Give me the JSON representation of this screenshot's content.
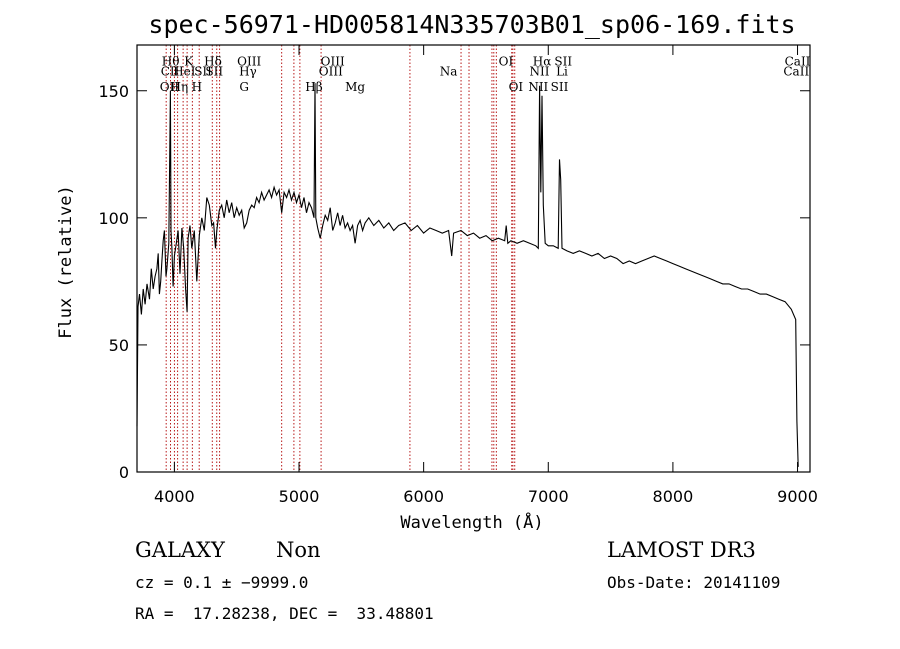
{
  "chart_data": {
    "type": "line",
    "title": "spec-56971-HD005814N335703B01_sp06-169.fits",
    "xlabel": "Wavelength (Å)",
    "ylabel": "Flux (relative)",
    "xlim": [
      3700,
      9100
    ],
    "ylim": [
      0,
      168
    ],
    "x_ticks": [
      4000,
      5000,
      6000,
      7000,
      8000,
      9000
    ],
    "y_ticks": [
      0,
      50,
      100,
      150
    ],
    "grid": false,
    "series": [
      {
        "values": [
          [
            3700,
            18
          ],
          [
            3708,
            65
          ],
          [
            3720,
            70
          ],
          [
            3735,
            62
          ],
          [
            3750,
            72
          ],
          [
            3765,
            66
          ],
          [
            3780,
            74
          ],
          [
            3800,
            68
          ],
          [
            3815,
            80
          ],
          [
            3830,
            72
          ],
          [
            3845,
            77
          ],
          [
            3860,
            80
          ],
          [
            3870,
            86
          ],
          [
            3880,
            70
          ],
          [
            3890,
            75
          ],
          [
            3900,
            83
          ],
          [
            3910,
            91
          ],
          [
            3920,
            95
          ],
          [
            3933,
            77
          ],
          [
            3940,
            80
          ],
          [
            3955,
            90
          ],
          [
            3968,
            150
          ],
          [
            3973,
            95
          ],
          [
            3980,
            88
          ],
          [
            3990,
            73
          ],
          [
            4000,
            85
          ],
          [
            4015,
            90
          ],
          [
            4030,
            95
          ],
          [
            4045,
            78
          ],
          [
            4060,
            96
          ],
          [
            4075,
            88
          ],
          [
            4090,
            72
          ],
          [
            4102,
            63
          ],
          [
            4110,
            92
          ],
          [
            4125,
            97
          ],
          [
            4140,
            88
          ],
          [
            4160,
            95
          ],
          [
            4180,
            75
          ],
          [
            4200,
            93
          ],
          [
            4220,
            100
          ],
          [
            4240,
            95
          ],
          [
            4260,
            108
          ],
          [
            4280,
            105
          ],
          [
            4300,
            97
          ],
          [
            4315,
            98
          ],
          [
            4330,
            88
          ],
          [
            4340,
            95
          ],
          [
            4360,
            103
          ],
          [
            4380,
            105
          ],
          [
            4400,
            100
          ],
          [
            4420,
            107
          ],
          [
            4440,
            102
          ],
          [
            4460,
            106
          ],
          [
            4480,
            100
          ],
          [
            4500,
            104
          ],
          [
            4520,
            101
          ],
          [
            4540,
            103
          ],
          [
            4560,
            96
          ],
          [
            4580,
            98
          ],
          [
            4600,
            103
          ],
          [
            4620,
            105
          ],
          [
            4640,
            104
          ],
          [
            4660,
            108
          ],
          [
            4680,
            106
          ],
          [
            4700,
            110
          ],
          [
            4720,
            107
          ],
          [
            4740,
            109
          ],
          [
            4760,
            111
          ],
          [
            4780,
            108
          ],
          [
            4800,
            112
          ],
          [
            4820,
            109
          ],
          [
            4840,
            111
          ],
          [
            4861,
            102
          ],
          [
            4880,
            110
          ],
          [
            4900,
            108
          ],
          [
            4920,
            111
          ],
          [
            4940,
            107
          ],
          [
            4960,
            110
          ],
          [
            4980,
            106
          ],
          [
            5000,
            109
          ],
          [
            5020,
            104
          ],
          [
            5040,
            108
          ],
          [
            5060,
            102
          ],
          [
            5080,
            106
          ],
          [
            5100,
            104
          ],
          [
            5120,
            100
          ],
          [
            5128,
            153
          ],
          [
            5135,
            100
          ],
          [
            5150,
            96
          ],
          [
            5170,
            92
          ],
          [
            5190,
            97
          ],
          [
            5210,
            101
          ],
          [
            5230,
            99
          ],
          [
            5250,
            104
          ],
          [
            5270,
            95
          ],
          [
            5290,
            98
          ],
          [
            5310,
            102
          ],
          [
            5330,
            97
          ],
          [
            5350,
            101
          ],
          [
            5370,
            96
          ],
          [
            5390,
            98
          ],
          [
            5410,
            95
          ],
          [
            5430,
            97
          ],
          [
            5450,
            90
          ],
          [
            5470,
            97
          ],
          [
            5490,
            99
          ],
          [
            5510,
            95
          ],
          [
            5530,
            98
          ],
          [
            5560,
            100
          ],
          [
            5600,
            97
          ],
          [
            5640,
            99
          ],
          [
            5680,
            96
          ],
          [
            5720,
            98
          ],
          [
            5760,
            95
          ],
          [
            5800,
            97
          ],
          [
            5850,
            98
          ],
          [
            5900,
            95
          ],
          [
            5950,
            97
          ],
          [
            6000,
            94
          ],
          [
            6050,
            96
          ],
          [
            6100,
            95
          ],
          [
            6150,
            94
          ],
          [
            6200,
            95
          ],
          [
            6225,
            85
          ],
          [
            6240,
            94
          ],
          [
            6300,
            95
          ],
          [
            6350,
            93
          ],
          [
            6400,
            94
          ],
          [
            6450,
            92
          ],
          [
            6500,
            93
          ],
          [
            6550,
            91
          ],
          [
            6600,
            92
          ],
          [
            6650,
            91
          ],
          [
            6662,
            97
          ],
          [
            6675,
            90
          ],
          [
            6700,
            91
          ],
          [
            6750,
            90
          ],
          [
            6800,
            91
          ],
          [
            6850,
            90
          ],
          [
            6900,
            89
          ],
          [
            6920,
            88
          ],
          [
            6930,
            152
          ],
          [
            6940,
            110
          ],
          [
            6950,
            148
          ],
          [
            6960,
            105
          ],
          [
            6975,
            90
          ],
          [
            7000,
            89
          ],
          [
            7040,
            89
          ],
          [
            7080,
            88
          ],
          [
            7090,
            123
          ],
          [
            7100,
            115
          ],
          [
            7110,
            88
          ],
          [
            7150,
            87
          ],
          [
            7200,
            86
          ],
          [
            7250,
            87
          ],
          [
            7300,
            86
          ],
          [
            7350,
            85
          ],
          [
            7400,
            86
          ],
          [
            7450,
            84
          ],
          [
            7500,
            85
          ],
          [
            7550,
            84
          ],
          [
            7600,
            82
          ],
          [
            7650,
            83
          ],
          [
            7700,
            82
          ],
          [
            7750,
            83
          ],
          [
            7800,
            84
          ],
          [
            7850,
            85
          ],
          [
            7900,
            84
          ],
          [
            7950,
            83
          ],
          [
            8000,
            82
          ],
          [
            8050,
            81
          ],
          [
            8100,
            80
          ],
          [
            8150,
            79
          ],
          [
            8200,
            78
          ],
          [
            8250,
            77
          ],
          [
            8300,
            76
          ],
          [
            8350,
            75
          ],
          [
            8400,
            74
          ],
          [
            8450,
            74
          ],
          [
            8500,
            73
          ],
          [
            8550,
            72
          ],
          [
            8600,
            72
          ],
          [
            8650,
            71
          ],
          [
            8700,
            70
          ],
          [
            8750,
            70
          ],
          [
            8800,
            69
          ],
          [
            8850,
            68
          ],
          [
            8900,
            67
          ],
          [
            8950,
            64
          ],
          [
            8985,
            60
          ],
          [
            8995,
            20
          ],
          [
            9005,
            2
          ]
        ]
      }
    ],
    "line_markers": [
      {
        "x": 3934,
        "label": "K"
      },
      {
        "x": 3969,
        "label": "H"
      },
      {
        "x": 4000,
        "label": "OIII"
      },
      {
        "x": 4026,
        "label": "HeI"
      },
      {
        "x": 4070,
        "label": "SII"
      },
      {
        "x": 4102,
        "label": "Hδ"
      },
      {
        "x": 4144,
        "label": "G"
      },
      {
        "x": 4199,
        "label": "Hγ"
      },
      {
        "x": 4304,
        "label": "OIII"
      },
      {
        "x": 4340,
        "label": "Hβ"
      },
      {
        "x": 4363,
        "label": "OIII"
      },
      {
        "x": 4861,
        "label": "OIII"
      },
      {
        "x": 4959,
        "label": "Mg"
      },
      {
        "x": 5007,
        "label": "Na"
      },
      {
        "x": 5177,
        "label": "OI"
      },
      {
        "x": 5890,
        "label": "OI"
      },
      {
        "x": 6300,
        "label": "NII"
      },
      {
        "x": 6364,
        "label": "Hα"
      },
      {
        "x": 6548,
        "label": "NII"
      },
      {
        "x": 6563,
        "label": "SII"
      },
      {
        "x": 6583,
        "label": "Li"
      },
      {
        "x": 6707,
        "label": "SII"
      },
      {
        "x": 6716,
        "label": "CaII"
      },
      {
        "x": 6731,
        "label": "CaII"
      }
    ],
    "line_labels": [
      {
        "text": "Hθ",
        "x": 3970,
        "y": 160
      },
      {
        "text": "K",
        "x": 4115,
        "y": 160
      },
      {
        "text": "Hδ",
        "x": 4310,
        "y": 160
      },
      {
        "text": "OIII",
        "x": 4600,
        "y": 160
      },
      {
        "text": "OIII",
        "x": 5270,
        "y": 160
      },
      {
        "text": "OI",
        "x": 6660,
        "y": 160
      },
      {
        "text": "Hα",
        "x": 6950,
        "y": 160
      },
      {
        "text": "SII",
        "x": 7120,
        "y": 160
      },
      {
        "text": "CaII",
        "x": 9000,
        "y": 160
      },
      {
        "text": "CII",
        "x": 3965,
        "y": 156
      },
      {
        "text": "HeI",
        "x": 4080,
        "y": 156
      },
      {
        "text": "SII",
        "x": 4230,
        "y": 156
      },
      {
        "text": "SII",
        "x": 4320,
        "y": 156
      },
      {
        "text": "Hγ",
        "x": 4590,
        "y": 156
      },
      {
        "text": "OIII",
        "x": 5255,
        "y": 156
      },
      {
        "text": "Na",
        "x": 6200,
        "y": 156
      },
      {
        "text": "NII",
        "x": 6930,
        "y": 156
      },
      {
        "text": "Li",
        "x": 7110,
        "y": 156
      },
      {
        "text": "CaII",
        "x": 8990,
        "y": 156
      },
      {
        "text": "OII",
        "x": 3960,
        "y": 150
      },
      {
        "text": "Hη",
        "x": 4040,
        "y": 150
      },
      {
        "text": "H",
        "x": 4180,
        "y": 150
      },
      {
        "text": "G",
        "x": 4560,
        "y": 150
      },
      {
        "text": "Hβ",
        "x": 5120,
        "y": 150
      },
      {
        "text": "Mg",
        "x": 5450,
        "y": 150
      },
      {
        "text": "OI",
        "x": 6740,
        "y": 150
      },
      {
        "text": "NII",
        "x": 6920,
        "y": 150
      },
      {
        "text": "SII",
        "x": 7090,
        "y": 150
      }
    ]
  },
  "info": {
    "object_class": "GALAXY",
    "subclass": "Non",
    "survey": "LAMOST DR3",
    "redshift": "cz = 0.1 ± −9999.0",
    "obs_date": "Obs-Date: 20141109",
    "coords": "RA =  17.28238, DEC =  33.48801"
  },
  "colors": {
    "spectrum": "#000000",
    "marker": "#b00000",
    "axis": "#000000"
  }
}
